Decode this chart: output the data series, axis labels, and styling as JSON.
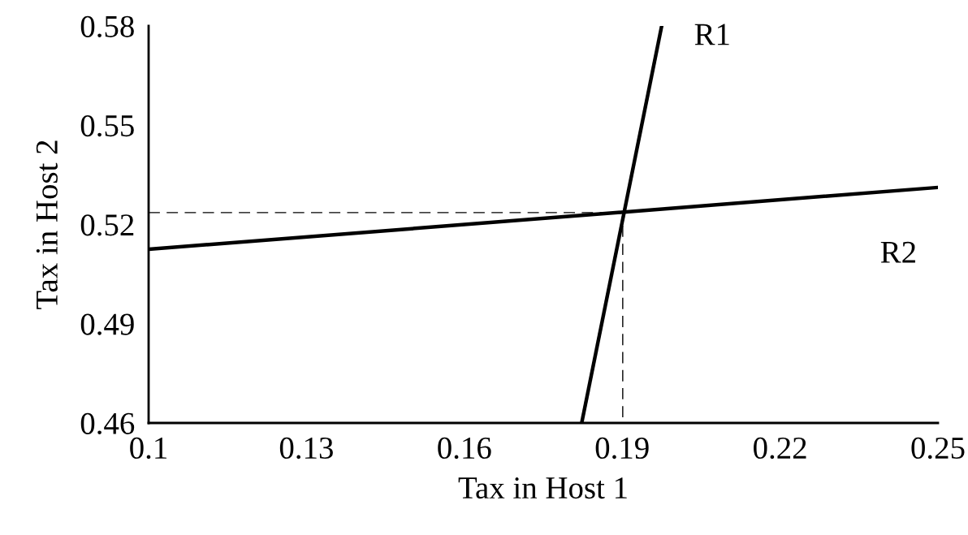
{
  "chart_data": {
    "type": "line",
    "xlabel": "Tax in Host 1",
    "ylabel": "Tax in Host 2",
    "series": [
      {
        "color": "#000000",
        "x": [
          0.1823,
          0.1975
        ],
        "values": [
          0.46,
          0.58
        ],
        "line_style": "solid"
      },
      {
        "color": "#000000",
        "x": [
          0.1,
          0.25
        ],
        "values": [
          0.5125,
          0.5312
        ],
        "line_style": "solid"
      },
      {
        "color": "#000000",
        "x": [
          0.1,
          0.1901,
          0.1901
        ],
        "values": [
          0.5236,
          0.5236,
          0.46
        ],
        "line_style": "dashed"
      }
    ],
    "annotations": [
      "R1",
      "R2"
    ],
    "xlim": [
      0.1,
      0.25
    ],
    "xticks": [
      0.1,
      0.13,
      0.16,
      0.19,
      0.22,
      0.25
    ],
    "ylim": [
      0.46,
      0.58
    ],
    "yticks": [
      0.46,
      0.49,
      0.52,
      0.55,
      0.58
    ],
    "grid": false,
    "legend": false,
    "marker": "none"
  }
}
